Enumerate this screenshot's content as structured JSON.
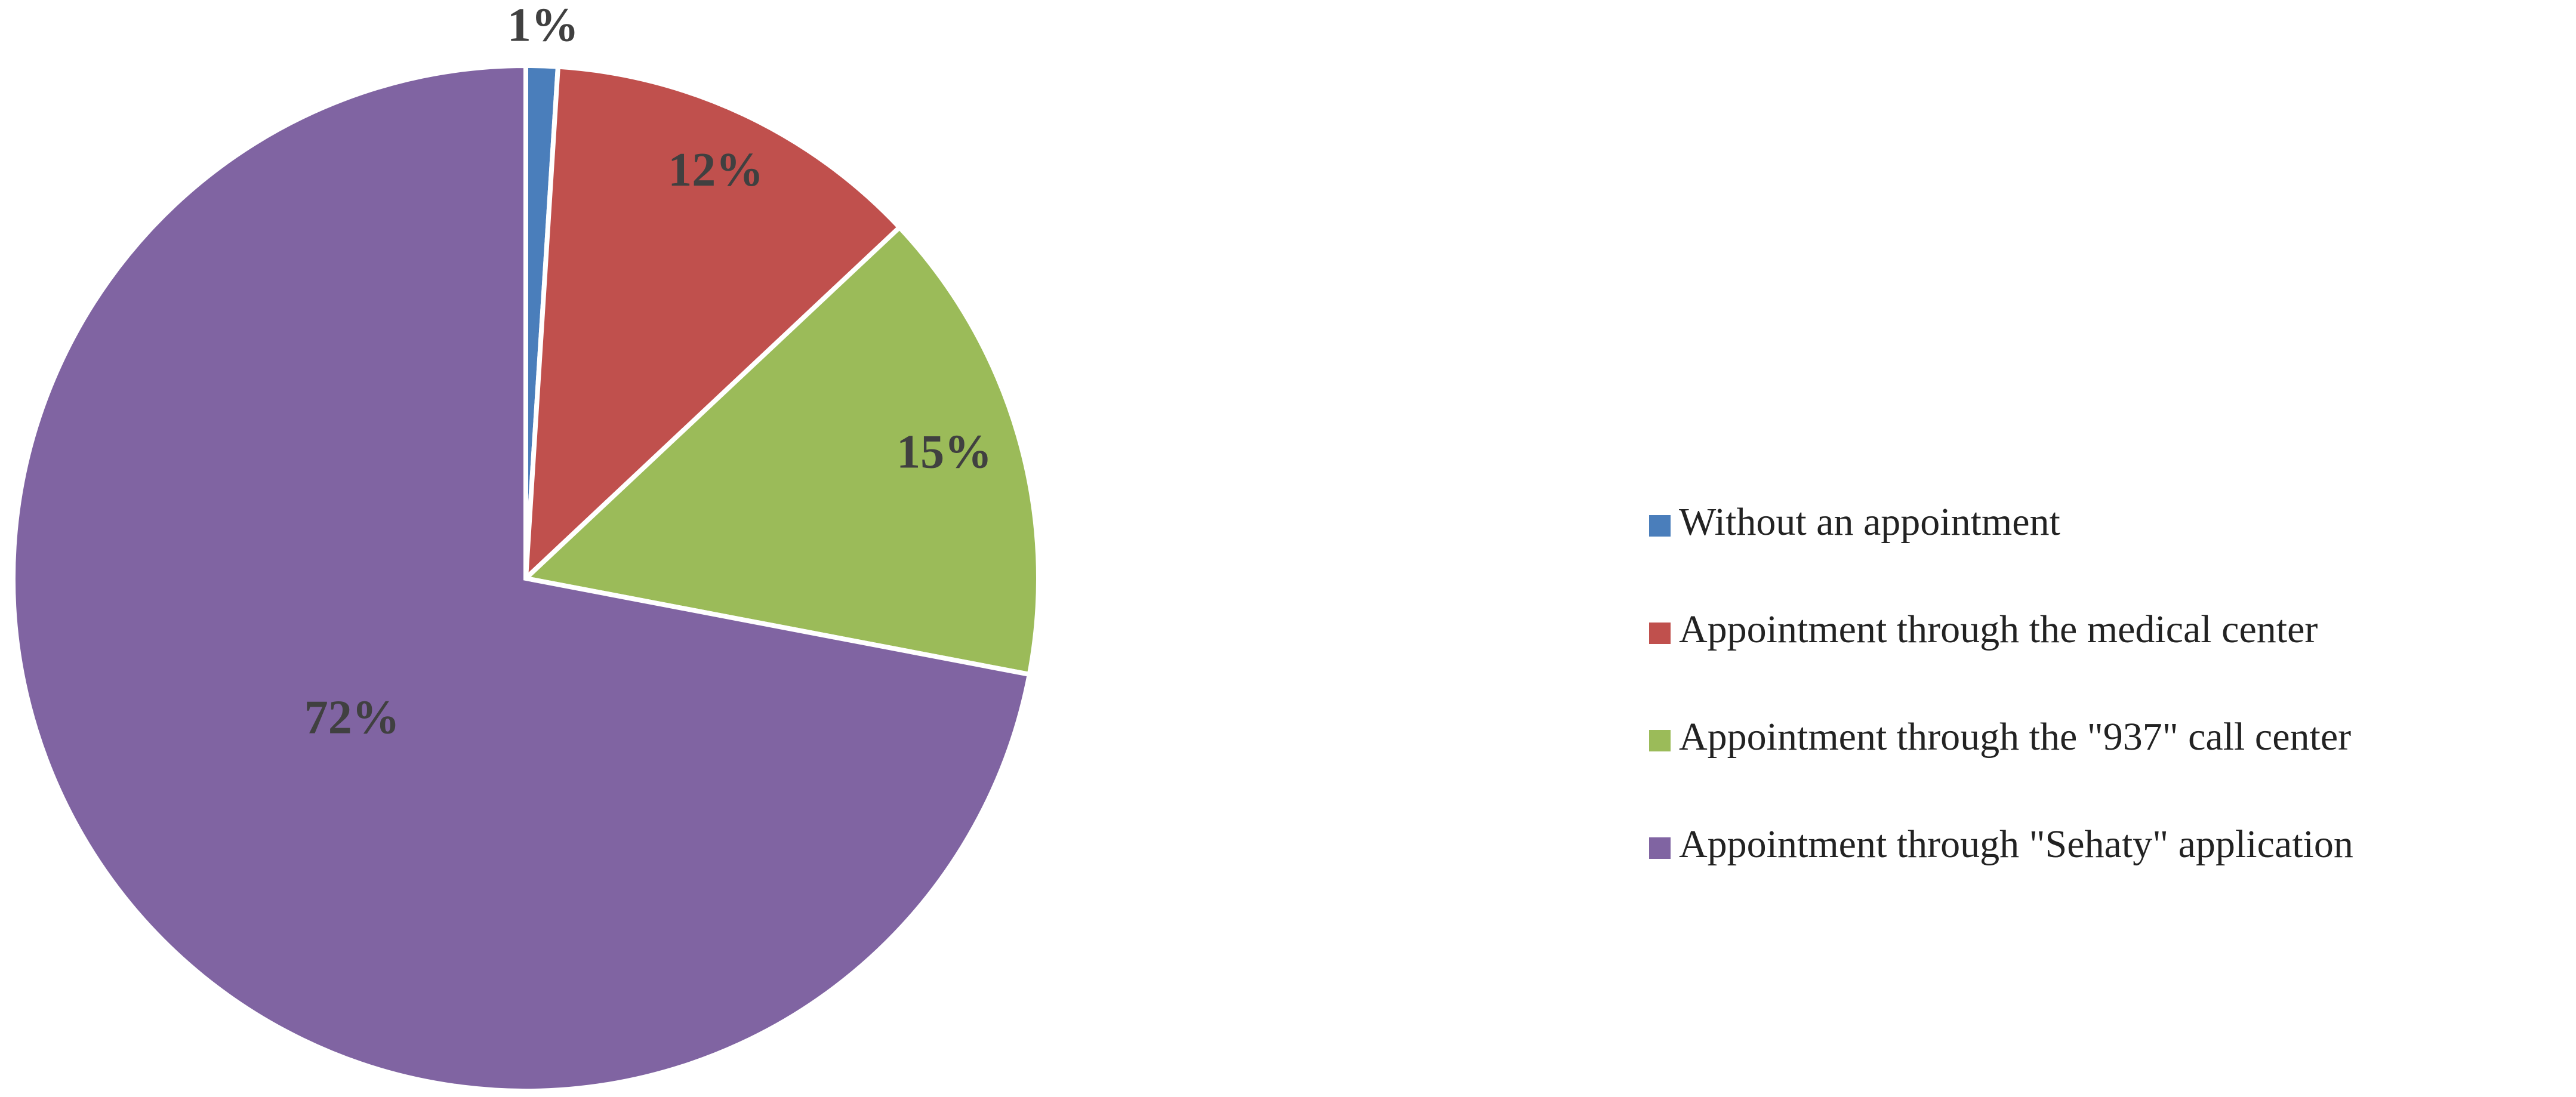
{
  "chart_data": {
    "type": "pie",
    "categories": [
      "Without an appointment",
      "Appointment through the medical center",
      "Appointment through the \"937\" call center",
      "Appointment through \"Sehaty\" application"
    ],
    "values": [
      1,
      12,
      15,
      72
    ],
    "value_labels": [
      "1%",
      "12%",
      "15%",
      "72%"
    ],
    "colors": [
      "#4a7ebb",
      "#c0504d",
      "#9bbb59",
      "#8064a2"
    ],
    "legend": "right"
  }
}
